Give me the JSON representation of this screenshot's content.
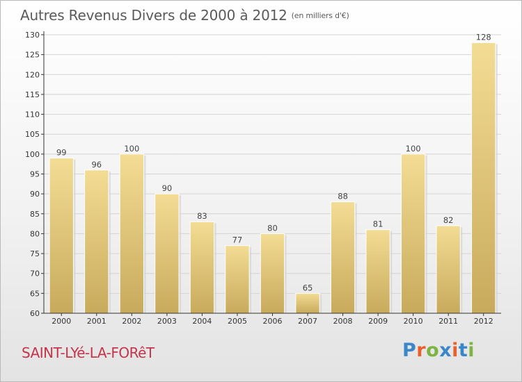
{
  "title": {
    "main": "Autres Revenus Divers de 2000 à 2012",
    "unit": "(en milliers d'€)"
  },
  "commune": "SAINT-LYé-LA-FORêT",
  "logo": {
    "text": "Proxiti",
    "letter_colors": [
      "#3a86c8",
      "#e8612c",
      "#7cb342",
      "#3a86c8",
      "#e8612c",
      "#3a86c8",
      "#7cb342"
    ]
  },
  "colors": {
    "bar_light": "#f3dc94",
    "bar_dark": "#c8aa5c",
    "grid": "#d4d4d4",
    "axis": "#333333",
    "commune": "#c4354b"
  },
  "chart_data": {
    "type": "bar",
    "categories": [
      "2000",
      "2001",
      "2002",
      "2003",
      "2004",
      "2005",
      "2006",
      "2007",
      "2008",
      "2009",
      "2010",
      "2011",
      "2012"
    ],
    "values": [
      99,
      96,
      100,
      90,
      83,
      77,
      80,
      65,
      88,
      81,
      100,
      82,
      128
    ],
    "ylim": [
      60,
      130
    ],
    "yticks": [
      60,
      65,
      70,
      75,
      80,
      85,
      90,
      95,
      100,
      105,
      110,
      115,
      120,
      125,
      130
    ],
    "grid": true,
    "title": "Autres Revenus Divers de 2000 à 2012",
    "xlabel": "",
    "ylabel": ""
  }
}
